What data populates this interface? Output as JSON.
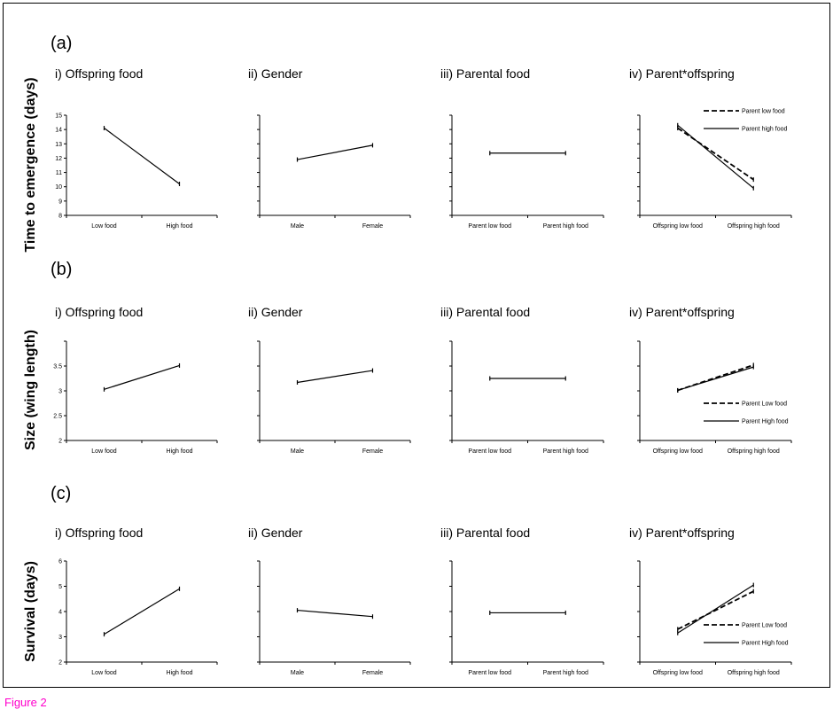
{
  "caption": "Figure 2",
  "colors": {
    "caption": "#ff00cc",
    "line": "#000000"
  },
  "rows": [
    {
      "label": "(a)",
      "ylabel": "Time to emergence (days)"
    },
    {
      "label": "(b)",
      "ylabel": "Size (wing length)"
    },
    {
      "label": "(c)",
      "ylabel": "Survival (days)"
    }
  ],
  "chart_data": [
    {
      "type": "line",
      "title": "i) Offspring food",
      "categories": [
        "Low food",
        "High food"
      ],
      "ylim": [
        8,
        15
      ],
      "yticks": [
        "8",
        "9",
        "10",
        "11",
        "12",
        "13",
        "14",
        "15"
      ],
      "series": [
        {
          "values": [
            14.1,
            10.2
          ],
          "style": "solid"
        }
      ]
    },
    {
      "type": "line",
      "title": "ii) Gender",
      "categories": [
        "Male",
        "Female"
      ],
      "ylim": [
        8,
        15
      ],
      "yticks": [],
      "series": [
        {
          "values": [
            11.9,
            12.9
          ],
          "style": "solid"
        }
      ]
    },
    {
      "type": "line",
      "title": "iii) Parental food",
      "categories": [
        "Parent low food",
        "Parent high food"
      ],
      "ylim": [
        8,
        15
      ],
      "yticks": [],
      "series": [
        {
          "values": [
            12.35,
            12.35
          ],
          "style": "solid"
        }
      ]
    },
    {
      "type": "line",
      "title": "iv) Parent*offspring",
      "categories": [
        "Offspring low food",
        "Offspring high food"
      ],
      "ylim": [
        8,
        15
      ],
      "yticks": [],
      "legend": "top-right",
      "series": [
        {
          "name": "Parent low food",
          "values": [
            14.1,
            10.5
          ],
          "style": "dashed"
        },
        {
          "name": "Parent high food",
          "values": [
            14.3,
            9.9
          ],
          "style": "solid"
        }
      ]
    },
    {
      "type": "line",
      "title": "i) Offspring food",
      "categories": [
        "Low food",
        "High food"
      ],
      "ylim": [
        2,
        4
      ],
      "yticks": [
        "2",
        "2.5",
        "3",
        "3.5"
      ],
      "series": [
        {
          "values": [
            3.03,
            3.51
          ],
          "style": "solid"
        }
      ]
    },
    {
      "type": "line",
      "title": "ii) Gender",
      "categories": [
        "Male",
        "Female"
      ],
      "ylim": [
        2,
        4
      ],
      "yticks": [],
      "series": [
        {
          "values": [
            3.17,
            3.41
          ],
          "style": "solid"
        }
      ]
    },
    {
      "type": "line",
      "title": "iii) Parental food",
      "categories": [
        "Parent low food",
        "Parent high food"
      ],
      "ylim": [
        2,
        4
      ],
      "yticks": [],
      "series": [
        {
          "values": [
            3.25,
            3.25
          ],
          "style": "solid"
        }
      ]
    },
    {
      "type": "line",
      "title": "iv) Parent*offspring",
      "categories": [
        "Offspring low food",
        "Offspring high food"
      ],
      "ylim": [
        2,
        4
      ],
      "yticks": [],
      "legend": "bottom-right",
      "series": [
        {
          "name": "Parent  Low food",
          "values": [
            3.01,
            3.52
          ],
          "style": "dashed"
        },
        {
          "name": "Parent High food",
          "values": [
            3.01,
            3.48
          ],
          "style": "solid"
        }
      ]
    },
    {
      "type": "line",
      "title": "i) Offspring food",
      "categories": [
        "Low food",
        "High food"
      ],
      "ylim": [
        2,
        6
      ],
      "yticks": [
        "2",
        "3",
        "4",
        "5",
        "6"
      ],
      "series": [
        {
          "values": [
            3.1,
            4.9
          ],
          "style": "solid"
        }
      ]
    },
    {
      "type": "line",
      "title": "ii) Gender",
      "categories": [
        "Male",
        "Female"
      ],
      "ylim": [
        2,
        6
      ],
      "yticks": [],
      "series": [
        {
          "values": [
            4.05,
            3.8
          ],
          "style": "solid"
        }
      ]
    },
    {
      "type": "line",
      "title": "iii) Parental food",
      "categories": [
        "Parent low food",
        "Parent high food"
      ],
      "ylim": [
        2,
        6
      ],
      "yticks": [],
      "series": [
        {
          "values": [
            3.95,
            3.95
          ],
          "style": "solid"
        }
      ]
    },
    {
      "type": "line",
      "title": "iv) Parent*offspring",
      "categories": [
        "Offspring low food",
        "Offspring high food"
      ],
      "ylim": [
        2,
        6
      ],
      "yticks": [],
      "legend": "bottom-right",
      "series": [
        {
          "name": "Parent Low food",
          "values": [
            3.3,
            4.8
          ],
          "style": "dashed"
        },
        {
          "name": "Parent High food",
          "values": [
            3.15,
            5.05
          ],
          "style": "solid"
        }
      ]
    }
  ]
}
